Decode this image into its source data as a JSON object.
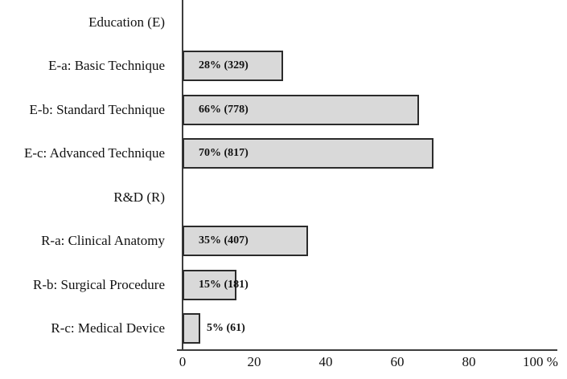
{
  "chart_data": {
    "type": "bar",
    "orientation": "horizontal",
    "title": "",
    "xlabel": "",
    "ylabel": "",
    "xlim": [
      0,
      100
    ],
    "grid": false,
    "legend": null,
    "rows": [
      {
        "category": "Education (E)",
        "value": null,
        "count": null,
        "bar_label": null
      },
      {
        "category": "E-a: Basic Technique",
        "value": 28,
        "count": 329,
        "bar_label": "28% (329)"
      },
      {
        "category": "E-b: Standard Technique",
        "value": 66,
        "count": 778,
        "bar_label": "66% (778)"
      },
      {
        "category": "E-c: Advanced Technique",
        "value": 70,
        "count": 817,
        "bar_label": "70% (817)"
      },
      {
        "category": "R&D (R)",
        "value": null,
        "count": null,
        "bar_label": null
      },
      {
        "category": "R-a: Clinical Anatomy",
        "value": 35,
        "count": 407,
        "bar_label": "35% (407)"
      },
      {
        "category": "R-b: Surgical Procedure",
        "value": 15,
        "count": 181,
        "bar_label": "15% (181)"
      },
      {
        "category": "R-c: Medical Device",
        "value": 5,
        "count": 61,
        "bar_label": "5% (61)"
      }
    ],
    "x_ticks": [
      {
        "value": 0,
        "label": "0"
      },
      {
        "value": 20,
        "label": "20"
      },
      {
        "value": 40,
        "label": "40"
      },
      {
        "value": 60,
        "label": "60"
      },
      {
        "value": 80,
        "label": "80"
      },
      {
        "value": 100,
        "label": "100 %"
      }
    ],
    "colors": {
      "bar_fill": "#d9d9d9",
      "bar_border": "#2b2b2b",
      "axis": "#3d3d3d",
      "text": "#111111"
    }
  }
}
